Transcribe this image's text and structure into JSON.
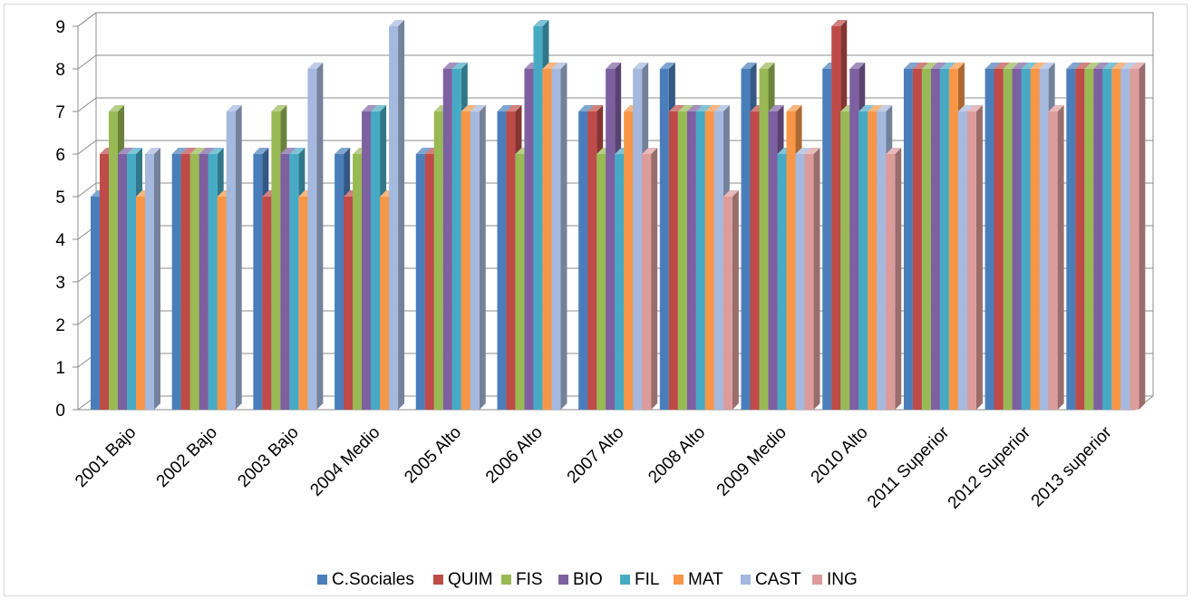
{
  "chart_data": {
    "type": "bar",
    "categories": [
      "2001 Bajo",
      "2002 Bajo",
      "2003 Bajo",
      "2004 Medio",
      "2005 Alto",
      "2006 Alto",
      "2007 Alto",
      "2008 Alto",
      "2009 Medio",
      "2010 Alto",
      "2011 Superior",
      "2012 Superior",
      "2013 superior"
    ],
    "series": [
      {
        "name": "C.Sociales",
        "color": "#4a7ebb",
        "values": [
          5,
          6,
          6,
          6,
          6,
          7,
          7,
          8,
          8,
          8,
          8,
          8,
          8
        ]
      },
      {
        "name": "QUIM",
        "color": "#be4b48",
        "values": [
          6,
          6,
          5,
          5,
          6,
          7,
          7,
          7,
          7,
          9,
          8,
          8,
          8
        ]
      },
      {
        "name": "FIS",
        "color": "#98b954",
        "values": [
          7,
          6,
          7,
          6,
          7,
          6,
          6,
          7,
          8,
          7,
          8,
          8,
          8
        ]
      },
      {
        "name": "BIO",
        "color": "#7d60a0",
        "values": [
          6,
          6,
          6,
          7,
          8,
          8,
          8,
          7,
          7,
          8,
          8,
          8,
          8
        ]
      },
      {
        "name": "FIL",
        "color": "#46aac5",
        "values": [
          6,
          6,
          6,
          7,
          8,
          9,
          6,
          7,
          6,
          7,
          8,
          8,
          8
        ]
      },
      {
        "name": "MAT",
        "color": "#f79646",
        "values": [
          5,
          5,
          5,
          5,
          7,
          8,
          7,
          7,
          7,
          7,
          8,
          8,
          8
        ]
      },
      {
        "name": "CAST",
        "color": "#a5b8de",
        "values": [
          6,
          7,
          8,
          9,
          7,
          8,
          8,
          7,
          6,
          7,
          7,
          8,
          8
        ]
      },
      {
        "name": "ING",
        "color": "#dc9c9b",
        "values": [
          null,
          null,
          null,
          null,
          null,
          null,
          6,
          5,
          6,
          6,
          7,
          7,
          8
        ]
      }
    ],
    "yticks": [
      "0",
      "1",
      "2",
      "3",
      "4",
      "5",
      "6",
      "7",
      "8",
      "9"
    ],
    "ylim": [
      0,
      9
    ],
    "grid": true,
    "legend_position": "bottom",
    "title": "",
    "xlabel": "",
    "ylabel": ""
  }
}
